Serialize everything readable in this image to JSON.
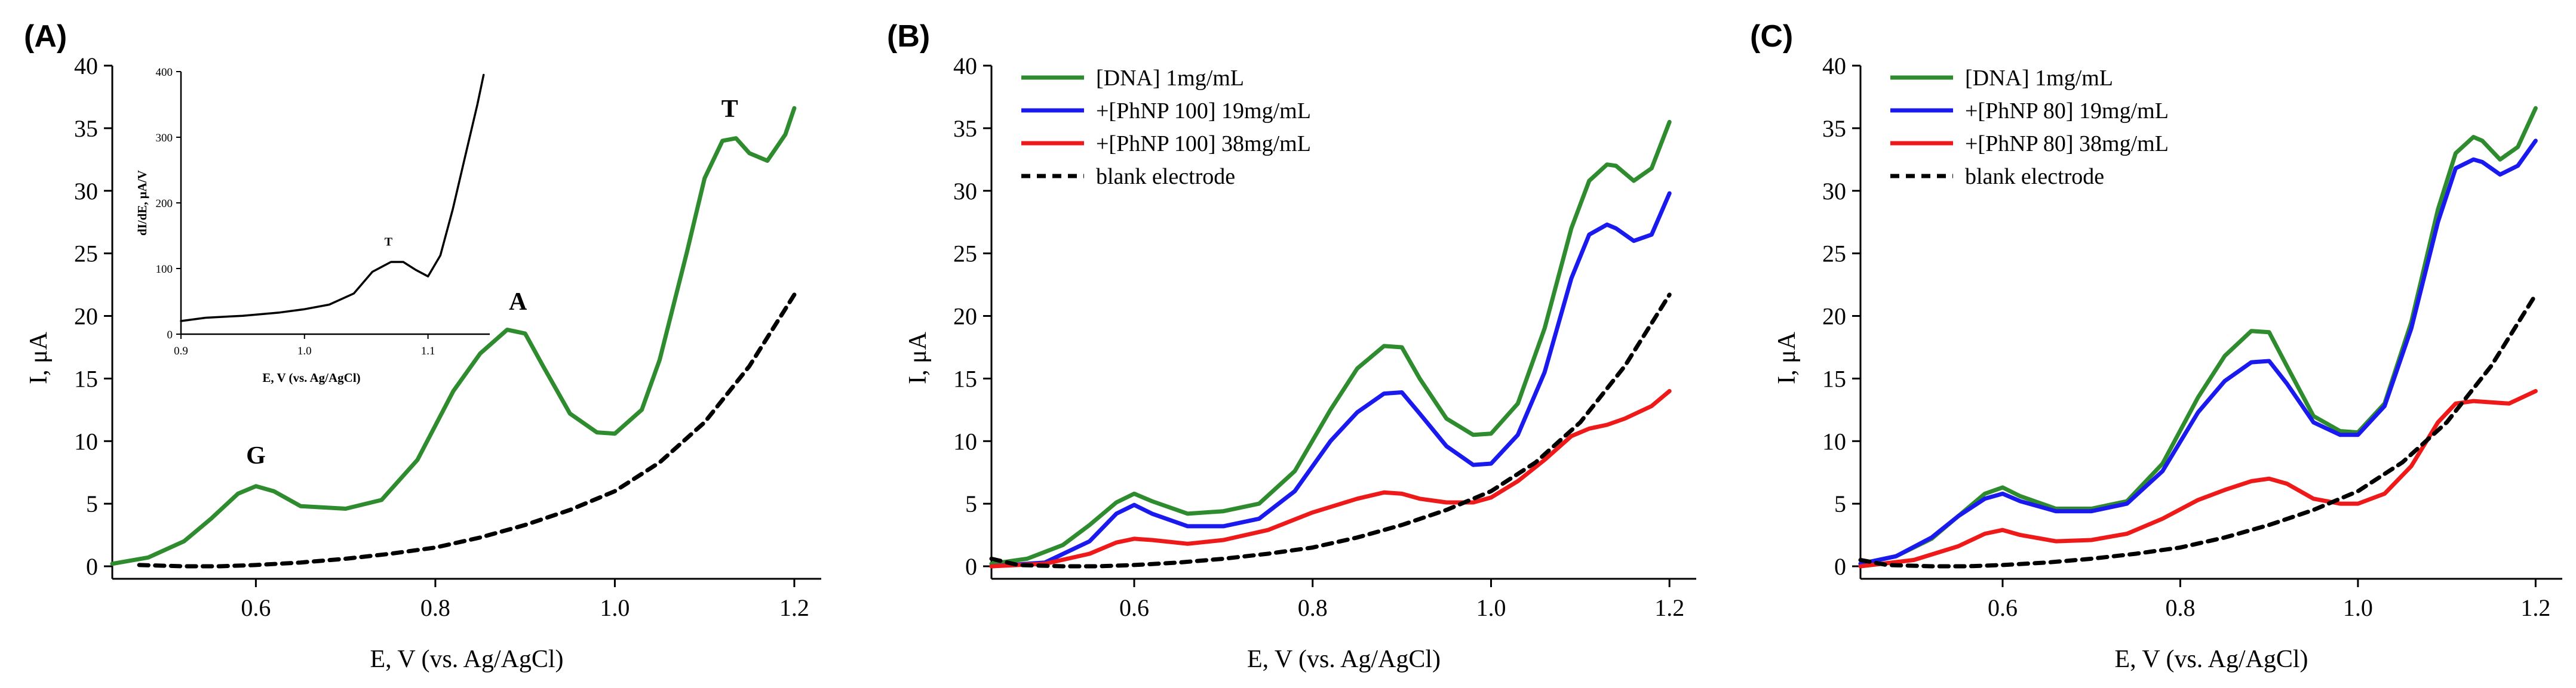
{
  "chart_data": [
    {
      "type": "line",
      "panel_label": "(A)",
      "xlabel": "E, V (vs. Ag/AgCl)",
      "ylabel": "I, μA",
      "xlim": [
        0.44,
        1.23
      ],
      "ylim": [
        -1,
        40
      ],
      "xticks": [
        0.6,
        0.8,
        1.0,
        1.2
      ],
      "xtick_labels": [
        "0.6",
        "0.8",
        "1.0",
        "1.2"
      ],
      "yticks": [
        0,
        5,
        10,
        15,
        20,
        25,
        30,
        35,
        40
      ],
      "ytick_labels": [
        "0",
        "5",
        "10",
        "15",
        "20",
        "25",
        "30",
        "35",
        "40"
      ],
      "grid": false,
      "legend": [],
      "annotations": [
        {
          "text": "G",
          "x": 0.6,
          "y": 8.2
        },
        {
          "text": "A",
          "x": 0.892,
          "y": 20.5
        },
        {
          "text": "T",
          "x": 1.128,
          "y": 35.9
        }
      ],
      "series": [
        {
          "color": "#2e8b2e",
          "dash": "solid",
          "x": [
            0.44,
            0.48,
            0.52,
            0.55,
            0.58,
            0.6,
            0.62,
            0.65,
            0.7,
            0.74,
            0.78,
            0.82,
            0.85,
            0.88,
            0.9,
            0.92,
            0.95,
            0.98,
            1.0,
            1.03,
            1.05,
            1.08,
            1.1,
            1.12,
            1.135,
            1.15,
            1.17,
            1.19,
            1.2
          ],
          "values": [
            0.2,
            0.7,
            2.0,
            3.8,
            5.8,
            6.4,
            6.0,
            4.8,
            4.6,
            5.3,
            8.5,
            14.0,
            17.0,
            18.9,
            18.6,
            16.0,
            12.2,
            10.7,
            10.6,
            12.5,
            16.5,
            25.0,
            31.0,
            34.0,
            34.2,
            33.0,
            32.4,
            34.5,
            36.6
          ]
        },
        {
          "color": "#000000",
          "dash": "dashed",
          "x": [
            0.47,
            0.52,
            0.56,
            0.6,
            0.65,
            0.7,
            0.75,
            0.8,
            0.85,
            0.9,
            0.95,
            1.0,
            1.05,
            1.1,
            1.15,
            1.2
          ],
          "values": [
            0.1,
            0.0,
            0.0,
            0.1,
            0.3,
            0.6,
            1.0,
            1.5,
            2.3,
            3.3,
            4.5,
            6.0,
            8.3,
            11.5,
            16.0,
            21.7
          ]
        }
      ],
      "inset": {
        "type": "line",
        "xlabel": "E, V (vs. Ag/AgCl)",
        "ylabel": "dI/dE, μA/V",
        "xlim": [
          0.9,
          1.15
        ],
        "ylim": [
          0,
          400
        ],
        "xticks": [
          0.9,
          1.0,
          1.1
        ],
        "xtick_labels": [
          "0.9",
          "1.0",
          "1.1"
        ],
        "yticks": [
          0,
          100,
          200,
          300,
          400
        ],
        "ytick_labels": [
          "0",
          "100",
          "200",
          "300",
          "400"
        ],
        "annotations": [
          {
            "text": "T",
            "x": 1.068,
            "y": 135
          }
        ],
        "series": [
          {
            "color": "#000000",
            "dash": "solid",
            "x": [
              0.9,
              0.92,
              0.95,
              0.98,
              1.0,
              1.02,
              1.04,
              1.055,
              1.07,
              1.08,
              1.09,
              1.1,
              1.11,
              1.12,
              1.13,
              1.14,
              1.145
            ],
            "values": [
              20,
              25,
              28,
              33,
              38,
              45,
              62,
              95,
              110,
              110,
              98,
              88,
              120,
              190,
              270,
              350,
              395
            ]
          }
        ]
      }
    },
    {
      "type": "line",
      "panel_label": "(B)",
      "xlabel": "E, V (vs. Ag/AgCl)",
      "ylabel": "I, μA",
      "xlim": [
        0.44,
        1.23
      ],
      "ylim": [
        -1,
        40
      ],
      "xticks": [
        0.6,
        0.8,
        1.0,
        1.2
      ],
      "xtick_labels": [
        "0.6",
        "0.8",
        "1.0",
        "1.2"
      ],
      "yticks": [
        0,
        5,
        10,
        15,
        20,
        25,
        30,
        35,
        40
      ],
      "ytick_labels": [
        "0",
        "5",
        "10",
        "15",
        "20",
        "25",
        "30",
        "35",
        "40"
      ],
      "grid": false,
      "legend_position": "top-left",
      "series": [
        {
          "name": "[DNA] 1mg/mL",
          "color": "#2e8b2e",
          "dash": "solid",
          "x": [
            0.44,
            0.48,
            0.52,
            0.55,
            0.58,
            0.6,
            0.62,
            0.66,
            0.7,
            0.74,
            0.78,
            0.82,
            0.85,
            0.88,
            0.9,
            0.92,
            0.95,
            0.98,
            1.0,
            1.03,
            1.06,
            1.09,
            1.11,
            1.13,
            1.14,
            1.16,
            1.18,
            1.2
          ],
          "values": [
            0.2,
            0.6,
            1.7,
            3.3,
            5.1,
            5.8,
            5.2,
            4.2,
            4.4,
            5.0,
            7.6,
            12.5,
            15.8,
            17.6,
            17.5,
            15.0,
            11.8,
            10.5,
            10.6,
            13.0,
            19.0,
            27.0,
            30.8,
            32.1,
            32.0,
            30.8,
            31.8,
            35.5
          ]
        },
        {
          "name": "+[PhNP 100] 19mg/mL",
          "color": "#1a1aee",
          "dash": "solid",
          "x": [
            0.44,
            0.5,
            0.55,
            0.58,
            0.6,
            0.62,
            0.66,
            0.7,
            0.74,
            0.78,
            0.82,
            0.85,
            0.88,
            0.9,
            0.92,
            0.95,
            0.98,
            1.0,
            1.03,
            1.06,
            1.09,
            1.11,
            1.13,
            1.14,
            1.16,
            1.18,
            1.2
          ],
          "values": [
            0.0,
            0.3,
            2.0,
            4.2,
            4.9,
            4.2,
            3.2,
            3.2,
            3.8,
            6.0,
            10.0,
            12.3,
            13.8,
            13.9,
            12.2,
            9.6,
            8.1,
            8.2,
            10.5,
            15.5,
            23.0,
            26.5,
            27.3,
            27.0,
            26.0,
            26.5,
            29.8
          ]
        },
        {
          "name": "+[PhNP 100] 38mg/mL",
          "color": "#ee1a1a",
          "dash": "solid",
          "x": [
            0.44,
            0.5,
            0.55,
            0.58,
            0.6,
            0.62,
            0.66,
            0.7,
            0.75,
            0.8,
            0.85,
            0.88,
            0.9,
            0.92,
            0.95,
            0.98,
            1.0,
            1.03,
            1.06,
            1.09,
            1.11,
            1.13,
            1.15,
            1.18,
            1.2
          ],
          "values": [
            0.0,
            0.2,
            1.0,
            1.9,
            2.2,
            2.1,
            1.8,
            2.1,
            2.9,
            4.3,
            5.4,
            5.9,
            5.8,
            5.4,
            5.1,
            5.1,
            5.5,
            6.8,
            8.5,
            10.4,
            11.0,
            11.3,
            11.8,
            12.8,
            14.0
          ]
        },
        {
          "name": "blank electrode",
          "color": "#000000",
          "dash": "dashed",
          "x": [
            0.44,
            0.47,
            0.52,
            0.56,
            0.6,
            0.65,
            0.7,
            0.75,
            0.8,
            0.85,
            0.9,
            0.95,
            1.0,
            1.05,
            1.1,
            1.15,
            1.2
          ],
          "values": [
            0.6,
            0.1,
            0.0,
            0.0,
            0.1,
            0.3,
            0.6,
            1.0,
            1.5,
            2.3,
            3.3,
            4.5,
            6.0,
            8.3,
            11.5,
            16.0,
            21.7
          ]
        }
      ]
    },
    {
      "type": "line",
      "panel_label": "(C)",
      "xlabel": "E, V (vs. Ag/AgCl)",
      "ylabel": "I, μA",
      "xlim": [
        0.44,
        1.23
      ],
      "ylim": [
        -1,
        40
      ],
      "xticks": [
        0.6,
        0.8,
        1.0,
        1.2
      ],
      "xtick_labels": [
        "0.6",
        "0.8",
        "1.0",
        "1.2"
      ],
      "yticks": [
        0,
        5,
        10,
        15,
        20,
        25,
        30,
        35,
        40
      ],
      "ytick_labels": [
        "0",
        "5",
        "10",
        "15",
        "20",
        "25",
        "30",
        "35",
        "40"
      ],
      "grid": false,
      "legend_position": "top-left",
      "series": [
        {
          "name": "[DNA] 1mg/mL",
          "color": "#2e8b2e",
          "dash": "solid",
          "x": [
            0.44,
            0.48,
            0.52,
            0.55,
            0.58,
            0.6,
            0.62,
            0.66,
            0.7,
            0.74,
            0.78,
            0.82,
            0.85,
            0.88,
            0.9,
            0.92,
            0.95,
            0.98,
            1.0,
            1.03,
            1.06,
            1.09,
            1.11,
            1.13,
            1.14,
            1.16,
            1.18,
            1.2
          ],
          "values": [
            0.2,
            0.8,
            2.2,
            4.0,
            5.8,
            6.3,
            5.6,
            4.6,
            4.6,
            5.2,
            8.2,
            13.5,
            16.8,
            18.8,
            18.7,
            16.0,
            12.0,
            10.8,
            10.7,
            13.0,
            19.5,
            28.5,
            33.0,
            34.3,
            34.0,
            32.5,
            33.5,
            36.6
          ]
        },
        {
          "name": "+[PhNP 80] 19mg/mL",
          "color": "#1a1aee",
          "dash": "solid",
          "x": [
            0.44,
            0.48,
            0.52,
            0.55,
            0.58,
            0.6,
            0.62,
            0.66,
            0.7,
            0.74,
            0.78,
            0.82,
            0.85,
            0.88,
            0.9,
            0.92,
            0.95,
            0.98,
            1.0,
            1.03,
            1.06,
            1.09,
            1.11,
            1.13,
            1.14,
            1.16,
            1.18,
            1.2
          ],
          "values": [
            0.2,
            0.8,
            2.3,
            4.0,
            5.4,
            5.8,
            5.2,
            4.4,
            4.4,
            5.0,
            7.6,
            12.3,
            14.8,
            16.3,
            16.4,
            14.6,
            11.5,
            10.5,
            10.5,
            12.8,
            19.0,
            27.5,
            31.8,
            32.5,
            32.3,
            31.3,
            32.0,
            34.0
          ]
        },
        {
          "name": "+[PhNP 80] 38mg/mL",
          "color": "#ee1a1a",
          "dash": "solid",
          "x": [
            0.44,
            0.5,
            0.55,
            0.58,
            0.6,
            0.62,
            0.66,
            0.7,
            0.74,
            0.78,
            0.82,
            0.85,
            0.88,
            0.9,
            0.92,
            0.95,
            0.98,
            1.0,
            1.03,
            1.06,
            1.09,
            1.11,
            1.13,
            1.15,
            1.17,
            1.2
          ],
          "values": [
            0.0,
            0.5,
            1.6,
            2.6,
            2.9,
            2.5,
            2.0,
            2.1,
            2.6,
            3.8,
            5.3,
            6.1,
            6.8,
            7.0,
            6.6,
            5.4,
            5.0,
            5.0,
            5.8,
            8.0,
            11.5,
            13.0,
            13.2,
            13.1,
            13.0,
            14.0
          ]
        },
        {
          "name": "blank electrode",
          "color": "#000000",
          "dash": "dashed",
          "x": [
            0.44,
            0.47,
            0.52,
            0.56,
            0.6,
            0.65,
            0.7,
            0.75,
            0.8,
            0.85,
            0.9,
            0.95,
            1.0,
            1.05,
            1.1,
            1.15,
            1.2
          ],
          "values": [
            0.5,
            0.1,
            0.0,
            0.0,
            0.1,
            0.3,
            0.6,
            1.0,
            1.5,
            2.3,
            3.3,
            4.5,
            6.0,
            8.3,
            11.5,
            16.0,
            21.7
          ]
        }
      ]
    }
  ]
}
